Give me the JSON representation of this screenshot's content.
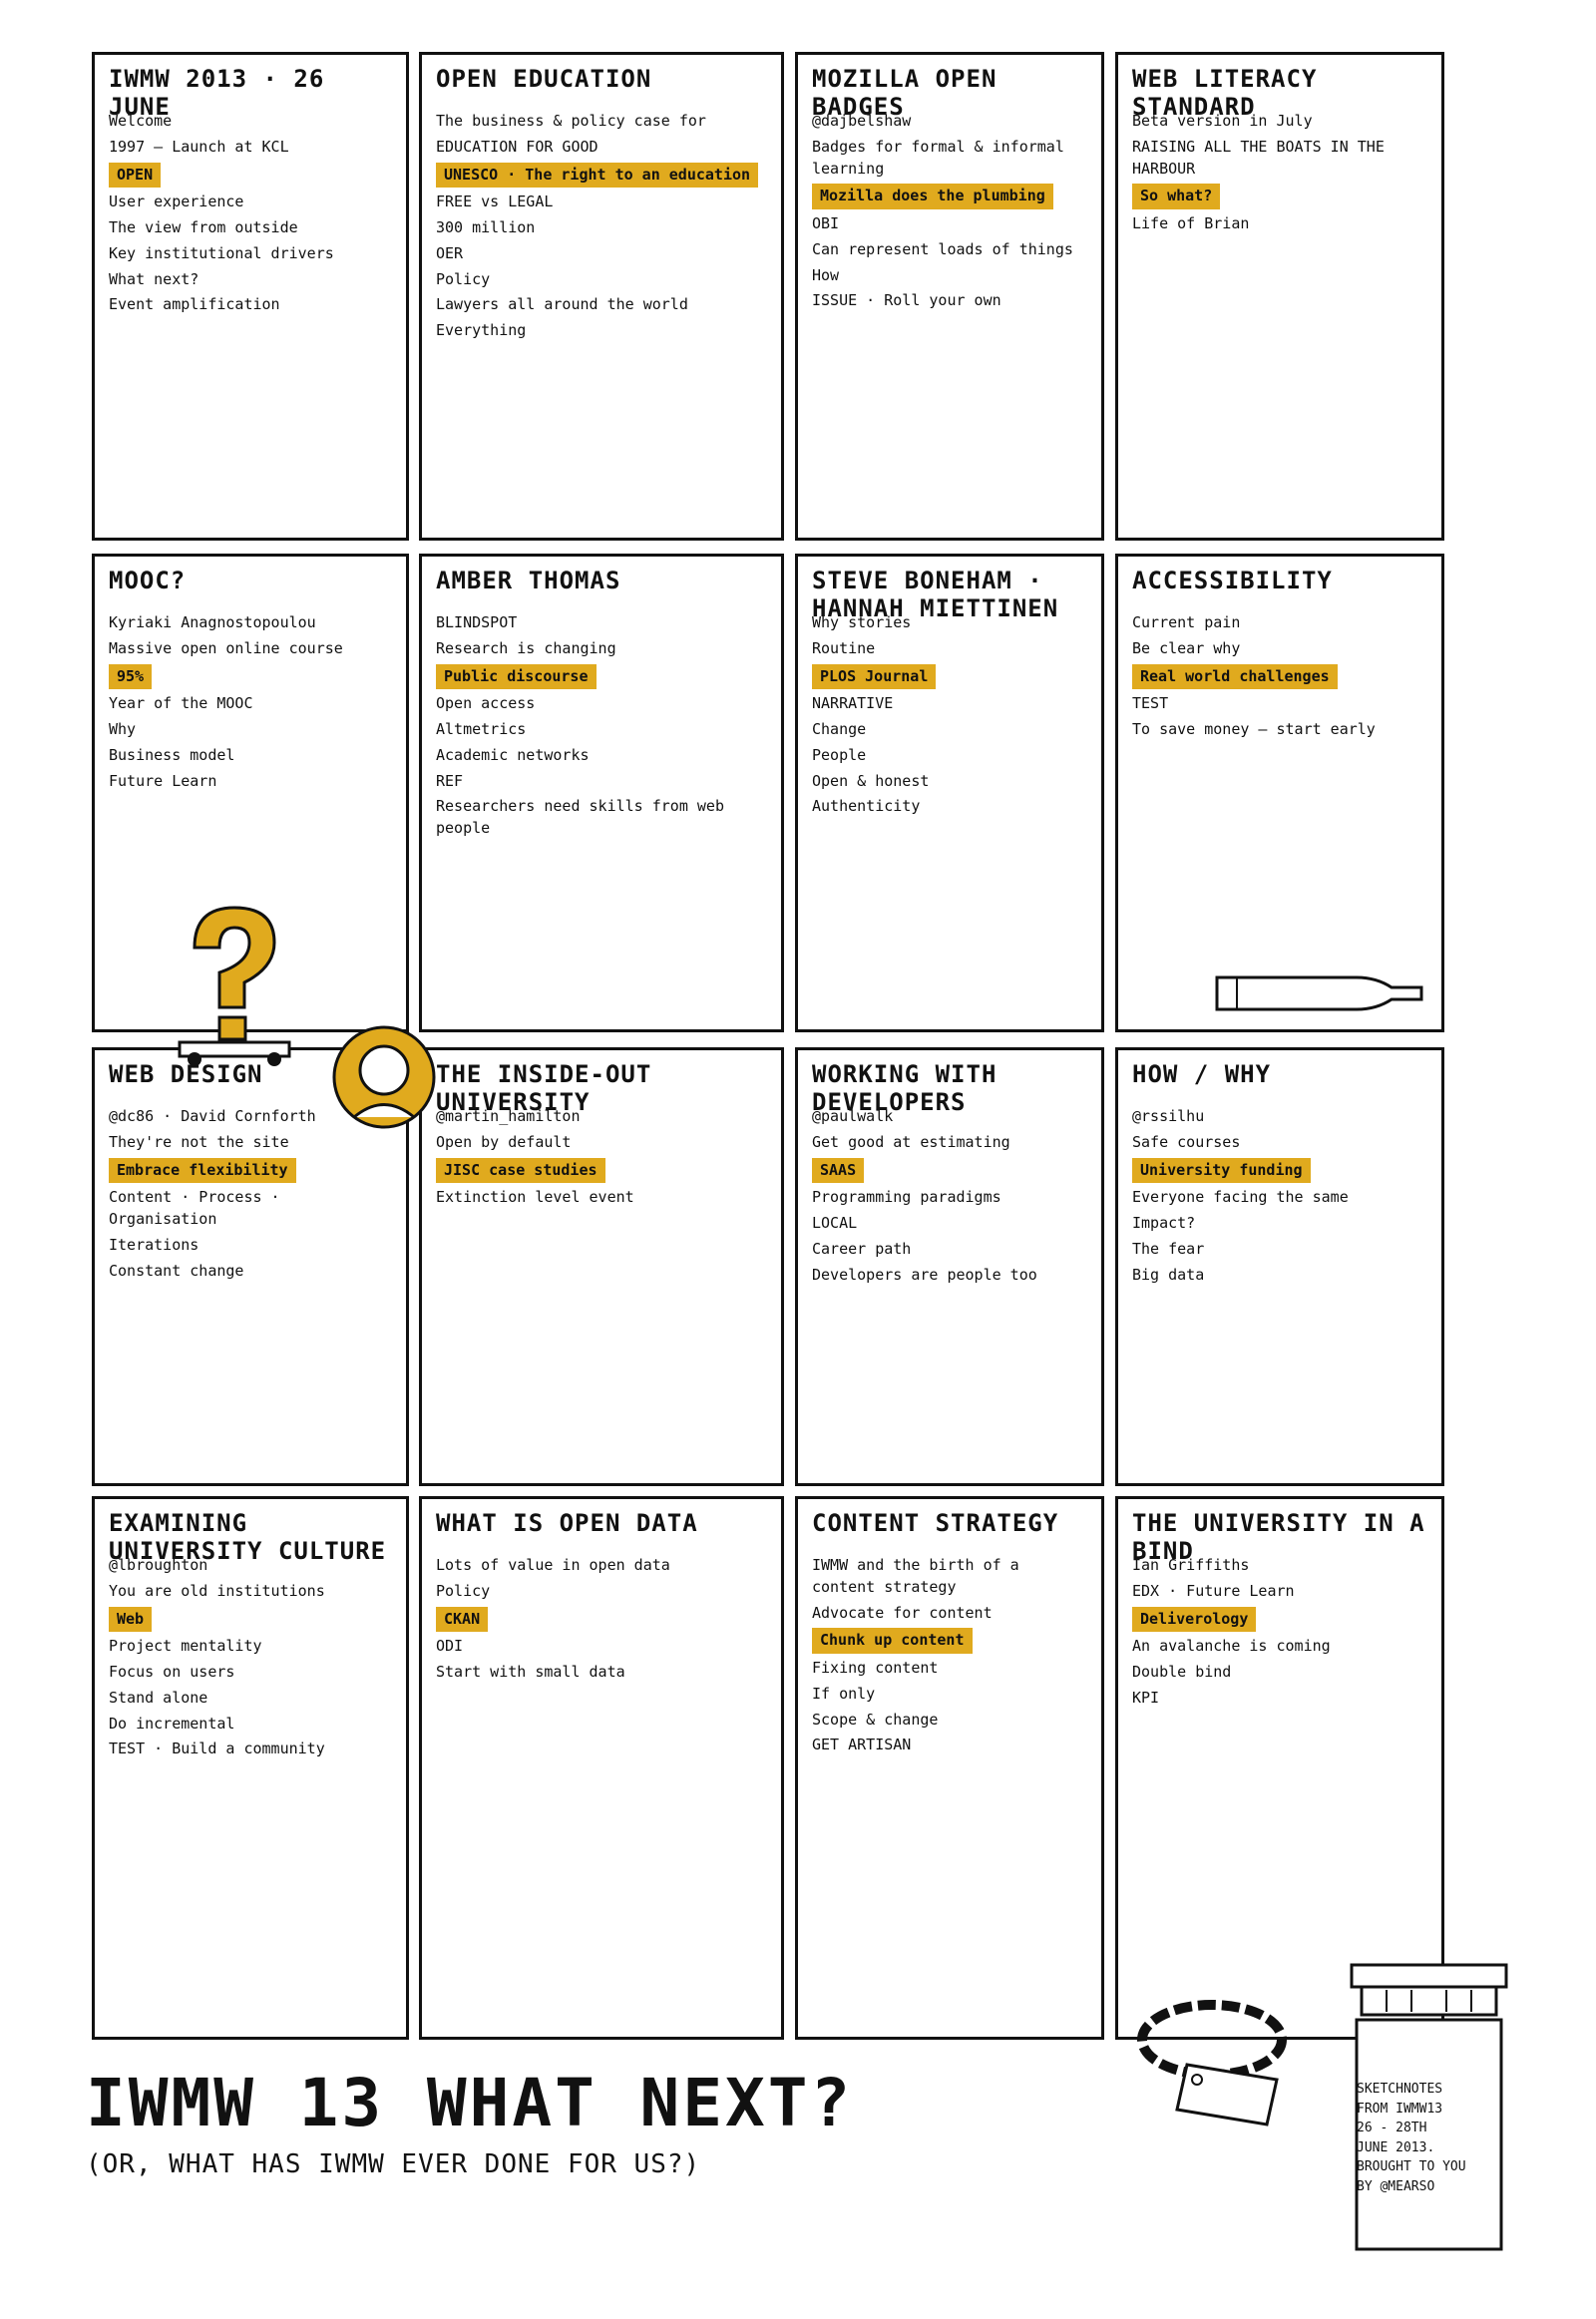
{
  "panels": [
    {
      "title": "IWMW 2013 · 26 June",
      "items": [
        "Welcome",
        "1997 — Launch at KCL",
        "OPEN",
        "User experience",
        "The view from outside",
        "Key institutional drivers",
        "What next?",
        "Event amplification"
      ]
    },
    {
      "title": "Open Education",
      "items": [
        "The business & policy case for",
        "EDUCATION FOR GOOD",
        "UNESCO · The right to an education",
        "FREE vs LEGAL",
        "300 million",
        "OER",
        "Policy",
        "Lawyers all around the world",
        "Everything"
      ]
    },
    {
      "title": "Mozilla Open Badges",
      "items": [
        "@dajbelshaw",
        "Badges for formal & informal learning",
        "Mozilla does the plumbing",
        "OBI",
        "Can represent loads of things",
        "How",
        "ISSUE · Roll your own"
      ]
    },
    {
      "title": "Web Literacy Standard",
      "items": [
        "Beta version in July",
        "RAISING ALL THE BOATS IN THE HARBOUR",
        "So what?",
        "Life of Brian"
      ]
    },
    {
      "title": "MOOC?",
      "items": [
        "Kyriaki Anagnostopoulou",
        "Massive open online course",
        "95%",
        "Year of the MOOC",
        "Why",
        "Business model",
        "Future Learn"
      ]
    },
    {
      "title": "Amber Thomas",
      "items": [
        "BLINDSPOT",
        "Research is changing",
        "Public discourse",
        "Open access",
        "Altmetrics",
        "Academic networks",
        "REF",
        "Researchers need skills from web people"
      ]
    },
    {
      "title": "Steve Boneham · Hannah Miettinen",
      "items": [
        "Why stories",
        "Routine",
        "PLOS Journal",
        "NARRATIVE",
        "Change",
        "People",
        "Open & honest",
        "Authenticity"
      ]
    },
    {
      "title": "Accessibility",
      "items": [
        "Current pain",
        "Be clear why",
        "Real world challenges",
        "TEST",
        "To save money — start early"
      ]
    },
    {
      "title": "Web Design",
      "items": [
        "@dc86 · David Cornforth",
        "They're not the site",
        "Embrace flexibility",
        "Content · Process · Organisation",
        "Iterations",
        "Constant change"
      ]
    },
    {
      "title": "The Inside-Out University",
      "items": [
        "@martin_hamilton",
        "Open by default",
        "JISC case studies",
        "Extinction level event"
      ]
    },
    {
      "title": "Working with Developers",
      "items": [
        "@paulwalk",
        "Get good at estimating",
        "SAAS",
        "Programming paradigms",
        "LOCAL",
        "Career path",
        "Developers are people too"
      ]
    },
    {
      "title": "How / Why",
      "items": [
        "@rssilhu",
        "Safe courses",
        "University funding",
        "Everyone facing the same",
        "Impact?",
        "The fear",
        "Big data"
      ]
    },
    {
      "title": "Examining University Culture",
      "items": [
        "@lbroughton",
        "You are old institutions",
        "Web",
        "Project mentality",
        "Focus on users",
        "Stand alone",
        "Do incremental",
        "TEST · Build a community"
      ]
    },
    {
      "title": "What is Open Data",
      "items": [
        "Lots of value in open data",
        "Policy",
        "CKAN",
        "ODI",
        "Start with small data"
      ]
    },
    {
      "title": "Content Strategy",
      "items": [
        "IWMW and the birth of a content strategy",
        "Advocate for content",
        "Chunk up content",
        "Fixing content",
        "If only",
        "Scope & change",
        "GET ARTISAN"
      ]
    },
    {
      "title": "The University in a Bind",
      "items": [
        "Ian Griffiths",
        "EDX · Future Learn",
        "Deliverology",
        "An avalanche is coming",
        "Double bind",
        "KPI"
      ]
    }
  ],
  "footer": {
    "title": "IWMW 13 WHAT NEXT?",
    "subtitle": "(OR, WHAT HAS IWMW EVER DONE FOR US?)"
  },
  "credit": {
    "lines": [
      "SKETCHNOTES",
      "FROM IWMW13",
      "26 - 28TH",
      "JUNE 2013.",
      "BROUGHT TO YOU",
      "BY @MEARSO"
    ]
  },
  "colors": {
    "accent": "#e0aa1e",
    "ink": "#111111",
    "paper": "#ffffff"
  }
}
